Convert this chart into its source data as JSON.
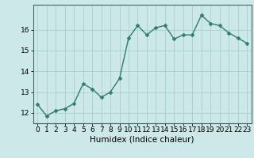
{
  "x": [
    0,
    1,
    2,
    3,
    4,
    5,
    6,
    7,
    8,
    9,
    10,
    11,
    12,
    13,
    14,
    15,
    16,
    17,
    18,
    19,
    20,
    21,
    22,
    23
  ],
  "y": [
    12.4,
    11.85,
    12.1,
    12.2,
    12.45,
    13.4,
    13.15,
    12.75,
    13.0,
    13.65,
    15.6,
    16.2,
    15.75,
    16.1,
    16.2,
    15.55,
    15.75,
    15.75,
    16.7,
    16.3,
    16.2,
    15.85,
    15.6,
    15.35
  ],
  "xlabel": "Humidex (Indice chaleur)",
  "line_color": "#2e7d6e",
  "marker": "D",
  "marker_size": 2.5,
  "line_width": 1.0,
  "bg_color": "#cce8e8",
  "grid_color": "#aacfcf",
  "ylim": [
    11.5,
    17.2
  ],
  "yticks": [
    12,
    13,
    14,
    15,
    16
  ],
  "xticks": [
    0,
    1,
    2,
    3,
    4,
    5,
    6,
    7,
    8,
    9,
    10,
    11,
    12,
    13,
    14,
    15,
    16,
    17,
    18,
    19,
    20,
    21,
    22,
    23
  ],
  "xlabel_fontsize": 7.5,
  "tick_fontsize": 6.5
}
